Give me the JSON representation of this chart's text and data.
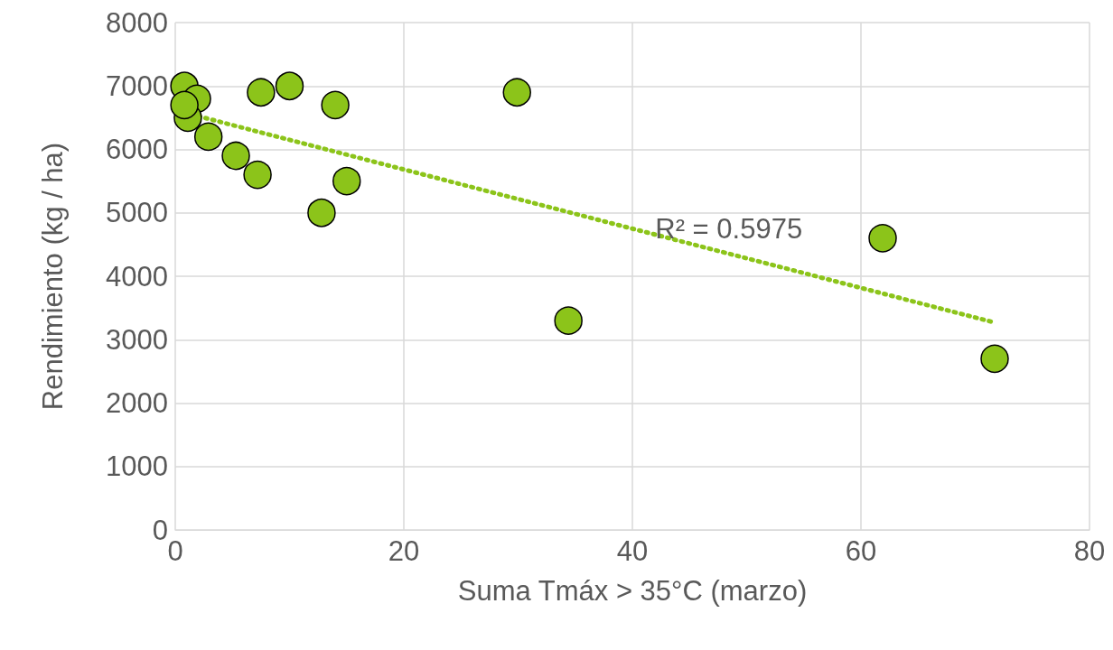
{
  "chart_data": {
    "type": "scatter",
    "xlabel": "Suma Tmáx > 35°C (marzo)",
    "ylabel": "Rendimiento (kg / ha)",
    "xlim": [
      0,
      80
    ],
    "xticks": [
      0,
      20,
      40,
      60,
      80
    ],
    "ylim": [
      0,
      8000
    ],
    "yticks": [
      0,
      1000,
      2000,
      3000,
      4000,
      5000,
      6000,
      7000,
      8000
    ],
    "grid": true,
    "marker": "circle",
    "series": [
      {
        "color": "#8cc41a",
        "x": [
          0.8,
          1.9,
          1.1,
          0.8,
          2.9,
          5.3,
          7.2,
          7.5,
          10.0,
          12.8,
          14.0,
          15.0,
          29.9,
          34.4,
          61.9,
          71.7
        ],
        "values": [
          7000,
          6800,
          6500,
          6700,
          6200,
          5900,
          5600,
          6900,
          7000,
          5000,
          6700,
          5500,
          6900,
          3300,
          4600,
          2700
        ]
      },
      {
        "type": "line",
        "color": "#8cc41a",
        "line_style": "dotted",
        "marker": "none",
        "x": [
          0.8,
          71.7
        ],
        "values": [
          6580,
          3270
        ]
      }
    ],
    "annotations": [
      {
        "text": "R² = 0.5975",
        "x": 42,
        "y": 4750
      }
    ]
  }
}
